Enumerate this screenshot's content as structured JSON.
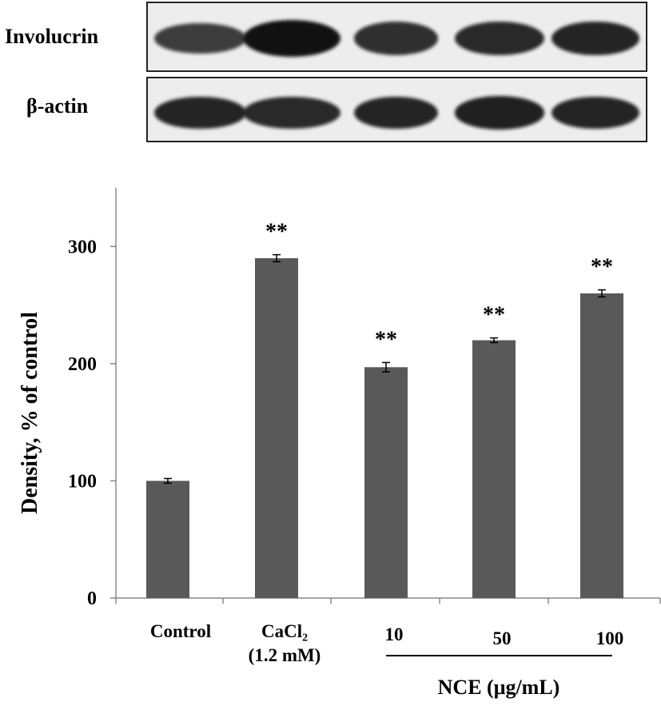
{
  "blot": {
    "rows": [
      {
        "label": "Involucrin",
        "intensity": [
          0.55,
          1.0,
          0.7,
          0.75,
          0.8
        ]
      },
      {
        "label": "β-actin",
        "intensity": [
          0.8,
          0.75,
          0.8,
          0.85,
          0.8
        ]
      }
    ]
  },
  "chart_data": {
    "type": "bar",
    "categories": [
      "Control",
      "CaCl₂\n(1.2 mM)",
      "10",
      "50",
      "100"
    ],
    "values": [
      100,
      290,
      197,
      220,
      260
    ],
    "errors": [
      2,
      3,
      4,
      2,
      3
    ],
    "annotations": [
      "",
      "**",
      "**",
      "**",
      "**"
    ],
    "ylabel": "Density, % of control",
    "yticks": [
      0,
      100,
      200,
      300
    ],
    "ylim": [
      0,
      350
    ],
    "group_label": "NCE (μg/mL)",
    "bar_color": "#595959"
  }
}
